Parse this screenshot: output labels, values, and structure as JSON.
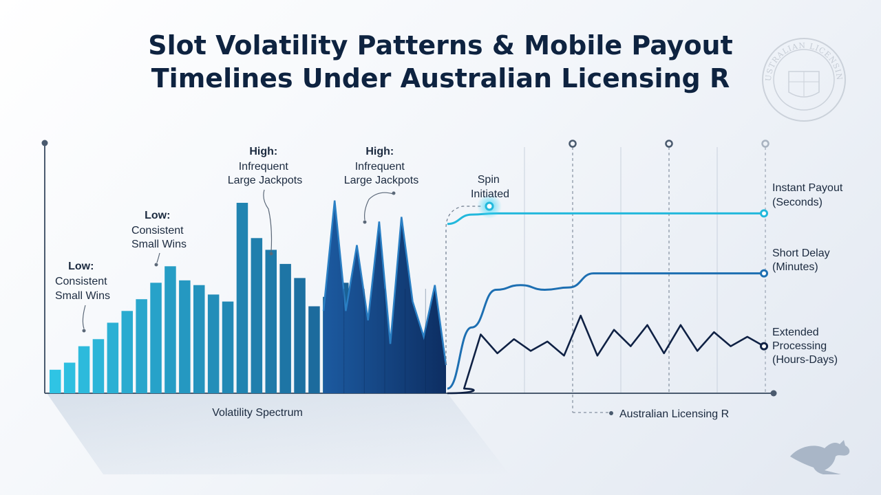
{
  "title_lines": [
    "Slot Volatility Patterns & Mobile Payout",
    "Timelines Under Australian Licensing R"
  ],
  "seal_text": "AUSTRALIAN LICENSING",
  "colors": {
    "title": "#0e2340",
    "bar_low": "#2fc4e4",
    "bar_high": "#123f7a",
    "instant": "#22b8dc",
    "short": "#1d6fb2",
    "extended": "#0f2144",
    "axis": "#4a5a6e"
  },
  "chart_data": [
    {
      "type": "bar",
      "xlabel": "Volatility Spectrum",
      "ylabel": "",
      "values": [
        0.1,
        0.13,
        0.2,
        0.23,
        0.3,
        0.35,
        0.4,
        0.47,
        0.54,
        0.48,
        0.46,
        0.42,
        0.39,
        0.81,
        0.66,
        0.61,
        0.55,
        0.49,
        0.37,
        0.41,
        0.47
      ],
      "spike_series": [
        0.35,
        0.82,
        0.35,
        0.63,
        0.31,
        0.73,
        0.21,
        0.75,
        0.39,
        0.24,
        0.46,
        0.12
      ],
      "annotations": [
        {
          "heading": "Low:",
          "lines": [
            "Consistent",
            "Small Wins"
          ]
        },
        {
          "heading": "Low:",
          "lines": [
            "Consistent",
            "Small Wins"
          ]
        },
        {
          "heading": "High:",
          "lines": [
            "Infrequent",
            "Large Jackpots"
          ]
        },
        {
          "heading": "High:",
          "lines": [
            "Infrequent",
            "Large Jackpots"
          ]
        }
      ]
    },
    {
      "type": "line",
      "start_label": [
        "Spin",
        "Initiated"
      ],
      "x_annotation": "Australian Licensing R",
      "series": [
        {
          "name": "Instant Payout",
          "sublabel": "(Seconds)",
          "values": [
            0.72,
            0.76,
            0.765,
            0.765,
            0.765,
            0.765,
            0.765,
            0.765,
            0.765,
            0.765,
            0.765,
            0.765,
            0.765,
            0.765
          ]
        },
        {
          "name": "Short Delay",
          "sublabel": "(Minutes)",
          "values": [
            0.02,
            0.28,
            0.44,
            0.46,
            0.44,
            0.45,
            0.51,
            0.51,
            0.51,
            0.51,
            0.51,
            0.51,
            0.51,
            0.51
          ]
        },
        {
          "name": "Extended Processing",
          "sublabel": "(Hours-Days)",
          "values": [
            0.0,
            0.02,
            0.25,
            0.17,
            0.23,
            0.18,
            0.22,
            0.16,
            0.33,
            0.16,
            0.27,
            0.2,
            0.29,
            0.17,
            0.29,
            0.18,
            0.26,
            0.2,
            0.24,
            0.2
          ]
        }
      ]
    }
  ]
}
